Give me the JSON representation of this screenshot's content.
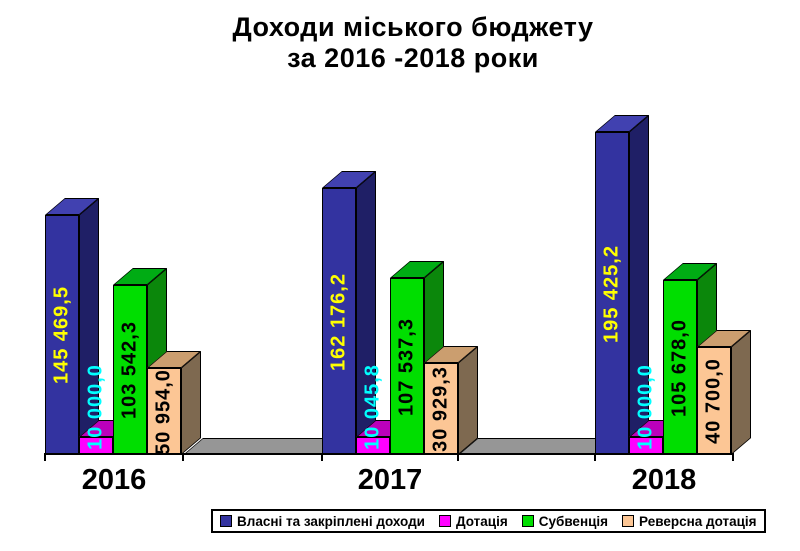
{
  "title": {
    "line1": "Доходи міського бюджету",
    "line2": "за 2016 -2018 роки"
  },
  "chart_data": {
    "type": "bar",
    "style": "3d-column",
    "title": "Доходи міського бюджету за 2016 -2018 роки",
    "categories": [
      "2016",
      "2017",
      "2018"
    ],
    "series": [
      {
        "name": "Власні та закріплені доходи",
        "values": [
          145469.5,
          162176.2,
          195425.2
        ],
        "labels": [
          "145 469,5",
          "162 176,2",
          "195 425,2"
        ],
        "color_front": "#3333A0",
        "color_top": "#4141B0",
        "color_side": "#1F1F66",
        "label_color": "#FFFF00"
      },
      {
        "name": "Дотація",
        "values": [
          10000.0,
          10045.8,
          10000.0
        ],
        "labels": [
          "10 000,0",
          "10 045,8",
          "10 000,0"
        ],
        "color_front": "#FF00FF",
        "color_top": "#BB00BB",
        "color_side": "#850085",
        "label_color": "#00FFFF"
      },
      {
        "name": "Субвенція",
        "values": [
          103542.3,
          107537.3,
          105678.0
        ],
        "labels": [
          "103 542,3",
          "107 537,3",
          "105 678,0"
        ],
        "color_front": "#00DE00",
        "color_top": "#00AC14",
        "color_side": "#0B870B",
        "label_color": "#000000"
      },
      {
        "name": "Реверсна дотація",
        "values": [
          50954.0,
          30929.3,
          40700.0
        ],
        "labels": [
          "50 954,0",
          "30 929,3",
          "40 700,0"
        ],
        "color_front": "#FCC695",
        "color_top": "#CB9E6F",
        "color_side": "#7E6950",
        "label_color": "#000000"
      }
    ],
    "legend_position": "bottom",
    "grid": false,
    "value_axis_visible": false,
    "floor_color": "#969696",
    "axis_color": "#000000",
    "background_color": "#FFFFFF"
  }
}
